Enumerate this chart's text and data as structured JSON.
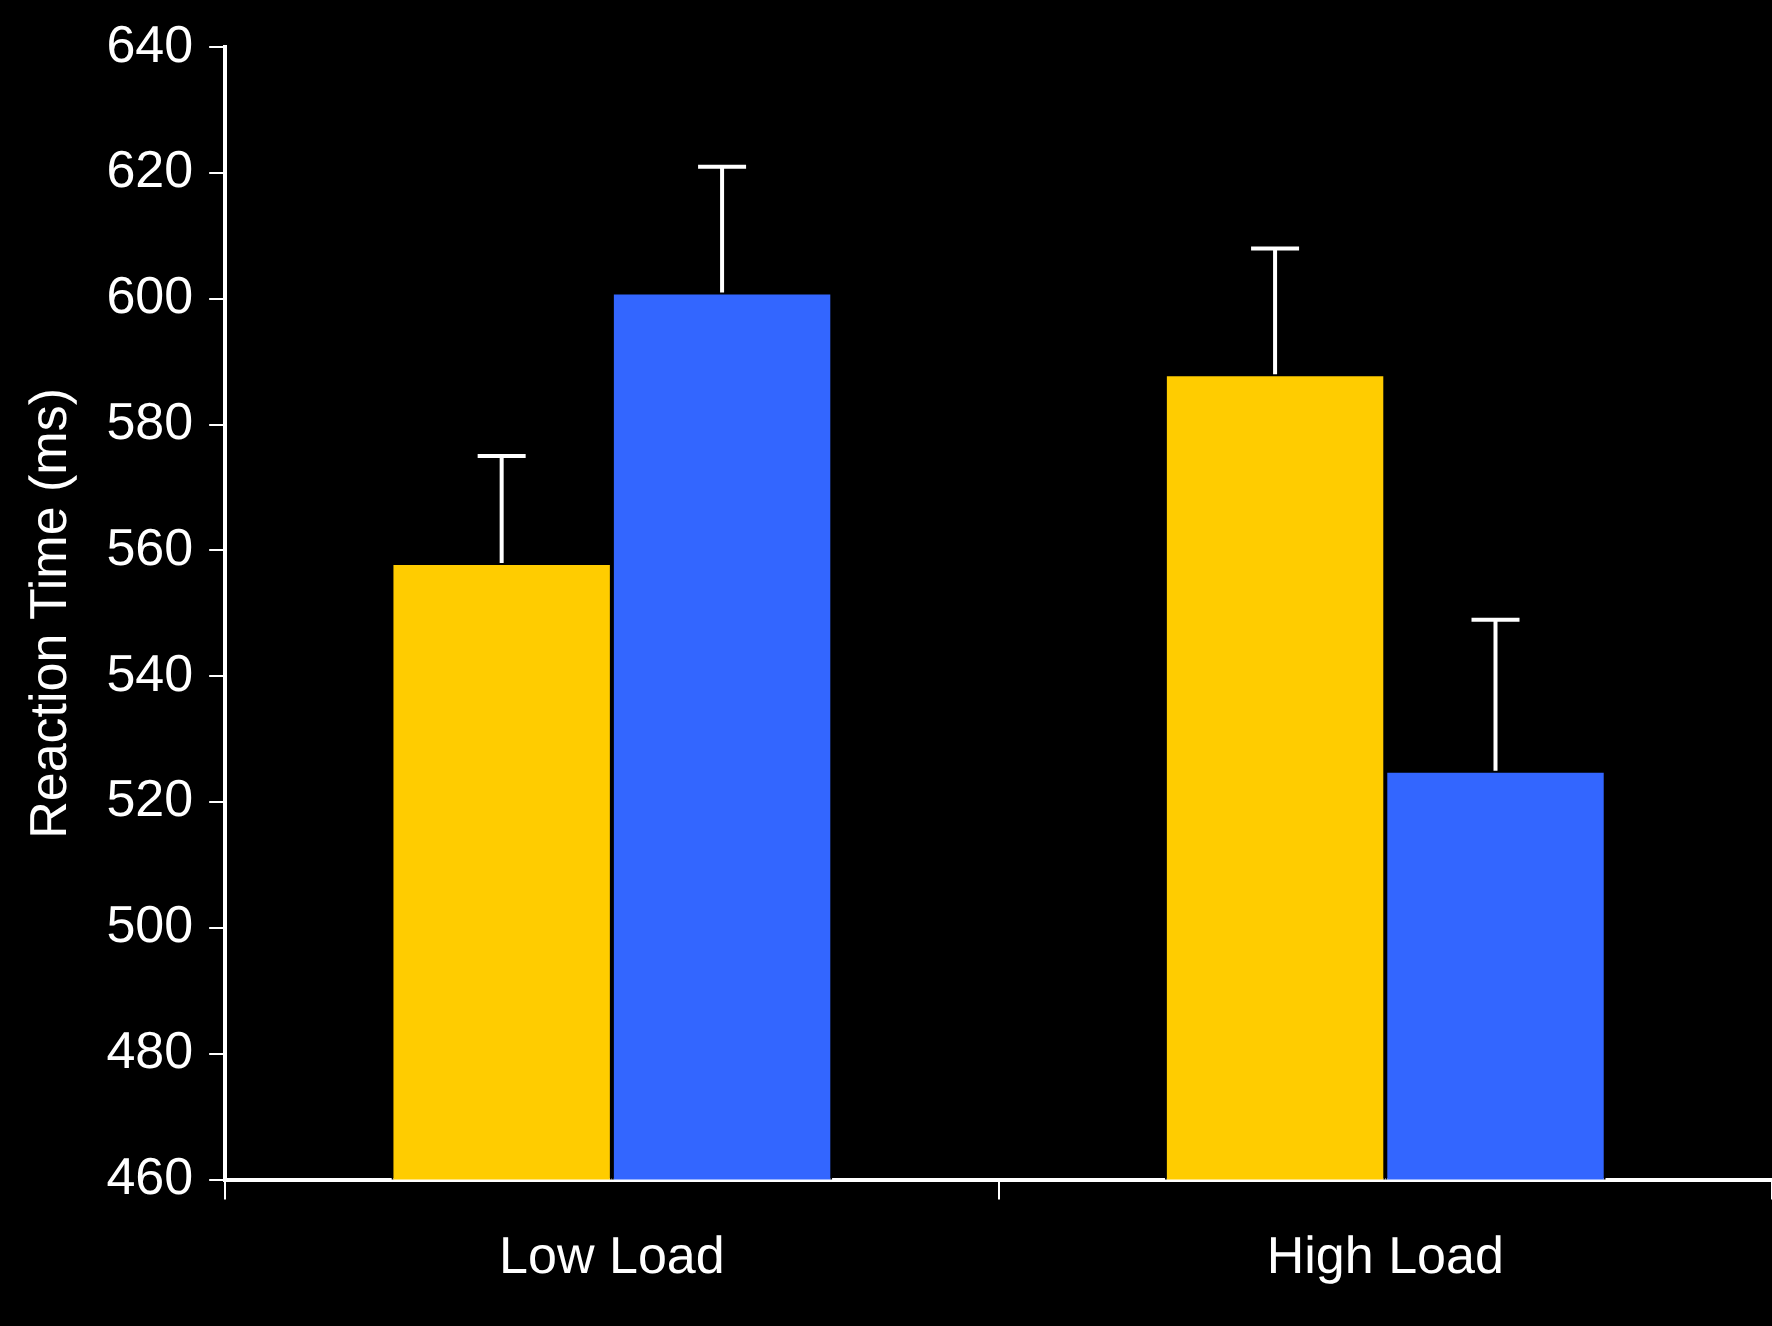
{
  "chart_data": {
    "type": "bar",
    "ylabel": "Reaction Time (ms)",
    "categories": [
      "Low Load",
      "High Load"
    ],
    "series": [
      {
        "color": "#ffcc00",
        "values": [
          558,
          588
        ],
        "errors": [
          [
            558,
            575
          ],
          [
            588,
            608
          ]
        ]
      },
      {
        "color": "#3366ff",
        "values": [
          601,
          525
        ],
        "errors": [
          [
            601,
            621
          ],
          [
            525,
            549
          ]
        ]
      }
    ],
    "ylim": [
      460,
      640
    ],
    "yticks": [
      460,
      480,
      500,
      520,
      540,
      560,
      580,
      600,
      620,
      640
    ],
    "grid": false,
    "legend": false
  }
}
